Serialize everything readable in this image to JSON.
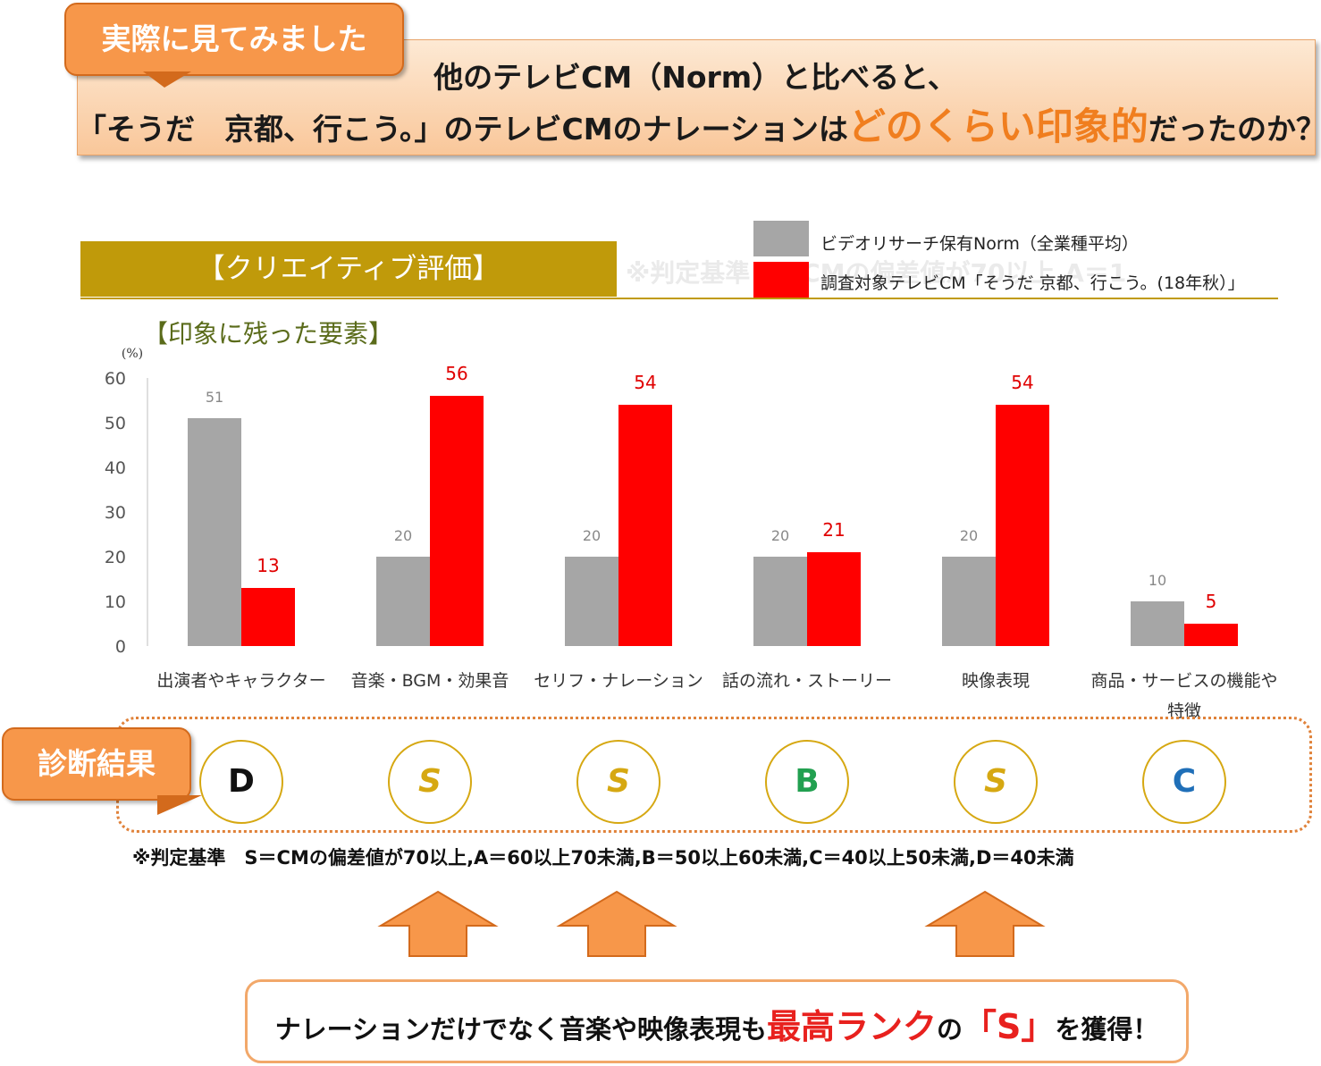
{
  "header": {
    "tag": "実際に見てみました",
    "line1": "他のテレビCM（Norm）と比べると、",
    "line2_pre": "「そうだ　京都、行こう。」のテレビCMのナレーションは",
    "line2_highlight": "どのくらい印象的",
    "line2_post": "だったのか？"
  },
  "section": {
    "title": "【クリエイティブ評価】",
    "ghost": "※判定基準 S＝CMの偏差値が70以上,A＝1"
  },
  "legend": [
    {
      "label": "ビデオリサーチ保有Norm（全業種平均）",
      "color": "#a6a6a6"
    },
    {
      "label": "調査対象テレビCM「そうだ 京都、行こう。(18年秋）」",
      "color": "#ff0000"
    }
  ],
  "subtitle": "【印象に残った要素】",
  "chart_data": {
    "type": "bar",
    "title": "【印象に残った要素】",
    "ylabel": "(%)",
    "ylim": [
      0,
      60
    ],
    "yticks": [
      0,
      10,
      20,
      30,
      40,
      50,
      60
    ],
    "categories": [
      "出演者やキャラクター",
      "音楽・BGM・効果音",
      "セリフ・ナレーション",
      "話の流れ・ストーリー",
      "映像表現",
      "商品・サービスの機能や特徴"
    ],
    "categories_wrapped": [
      [
        "出演者やキャラクター"
      ],
      [
        "音楽・BGM・効果音"
      ],
      [
        "セリフ・ナレーション"
      ],
      [
        "話の流れ・ストーリー"
      ],
      [
        "映像表現"
      ],
      [
        "商品・サービスの機能や",
        "特徴"
      ]
    ],
    "series": [
      {
        "name": "ビデオリサーチ保有Norm（全業種平均）",
        "color": "#a6a6a6",
        "values": [
          51,
          20,
          20,
          20,
          20,
          10
        ]
      },
      {
        "name": "調査対象テレビCM「そうだ 京都、行こう。(18年秋）」",
        "color": "#ff0000",
        "values": [
          13,
          56,
          54,
          21,
          54,
          5
        ]
      }
    ],
    "grid": false,
    "legend_position": "top-right"
  },
  "diagnosis": {
    "tag": "診断結果",
    "grades": [
      {
        "grade": "D",
        "color": "#111111"
      },
      {
        "grade": "S",
        "color": "#d6a812"
      },
      {
        "grade": "S",
        "color": "#d6a812"
      },
      {
        "grade": "B",
        "color": "#22a050"
      },
      {
        "grade": "S",
        "color": "#d6a812"
      },
      {
        "grade": "C",
        "color": "#1f6fb8"
      }
    ],
    "criteria": "※判定基準　S＝CMの偏差値が70以上,A＝60以上70未満,B＝50以上60未満,C＝40以上50未満,D＝40未満"
  },
  "conclusion": {
    "pre": "ナレーションだけでなく音楽や映像表現も",
    "highlight1": "最高ランク",
    "mid": "の",
    "highlight2": "「S」",
    "post": "を獲得！"
  }
}
